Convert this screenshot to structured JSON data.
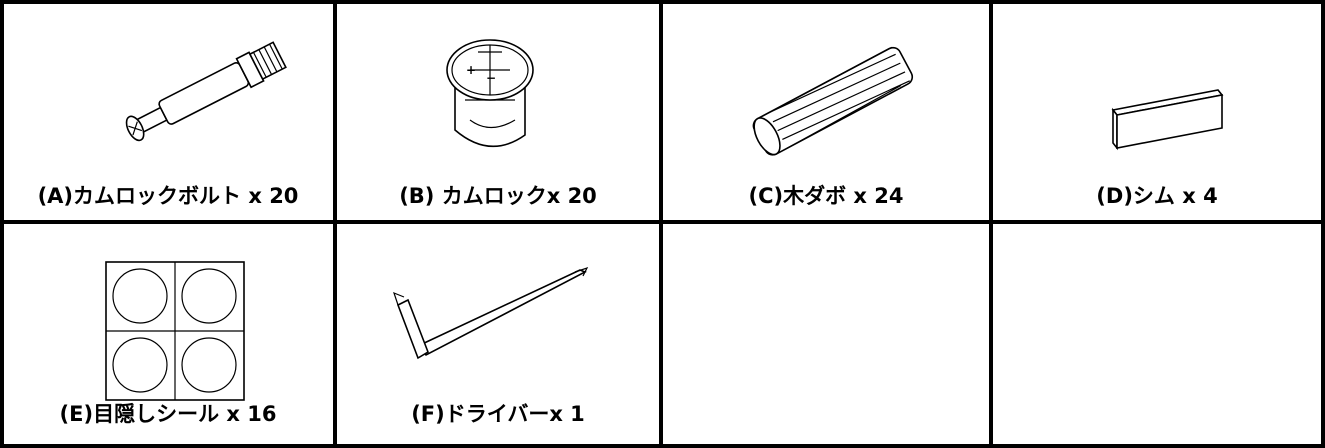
{
  "parts": [
    {
      "label": "(A)カムロックボルト x 20"
    },
    {
      "label": "(B) カムロックx 20"
    },
    {
      "label": "(C)木ダボ x 24"
    },
    {
      "label": "(D)シム x 4"
    },
    {
      "label": "(E)目隠しシール x 16"
    },
    {
      "label": "(F)ドライバーx 1"
    }
  ]
}
